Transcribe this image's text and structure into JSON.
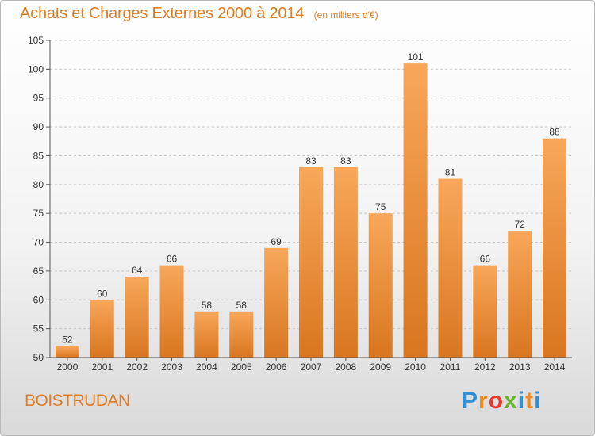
{
  "title": "Achats et Charges Externes 2000 à 2014",
  "unit_note": "(en milliers d'€)",
  "place_name": "BOISTRUDAN",
  "logo": {
    "text": "Proxiti",
    "letter_colors": [
      "#2e8fd6",
      "#f08a1e",
      "#e8392c",
      "#67b22f",
      "#2e8fd6",
      "#f08a1e",
      "#2e8fd6"
    ]
  },
  "colors": {
    "title": "#e07b22",
    "bar_light": "#f8a75a",
    "bar_dark": "#d9761f",
    "axis": "#555555",
    "grid": "#c8c8c8"
  },
  "chart_data": {
    "type": "bar",
    "title": "Achats et Charges Externes 2000 à 2014",
    "categories": [
      "2000",
      "2001",
      "2002",
      "2003",
      "2004",
      "2005",
      "2006",
      "2007",
      "2008",
      "2009",
      "2010",
      "2011",
      "2012",
      "2013",
      "2014"
    ],
    "values": [
      52,
      60,
      64,
      66,
      58,
      58,
      69,
      83,
      83,
      75,
      101,
      81,
      66,
      72,
      88
    ],
    "ylim": [
      50,
      105
    ],
    "yticks": [
      50,
      55,
      60,
      65,
      70,
      75,
      80,
      85,
      90,
      95,
      100,
      105
    ],
    "grid": "horizontal dashed",
    "xlabel": "",
    "ylabel": ""
  }
}
